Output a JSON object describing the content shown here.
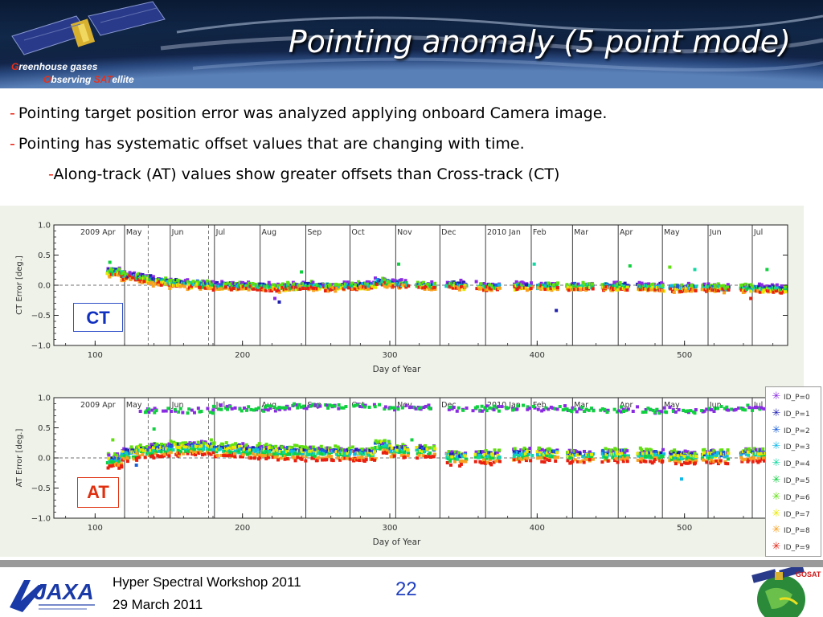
{
  "header": {
    "title": "Pointing anomaly (5 point mode)",
    "logo_line1_initial": "G",
    "logo_line1_rest": "reenhouse gases",
    "logo_line2_initial": "O",
    "logo_line2_mid": "bserving ",
    "logo_line2_sat": "SAT",
    "logo_line2_rest": "ellite"
  },
  "bullets": [
    {
      "dash": "-",
      "text": "Pointing target position error was analyzed applying onboard Camera image."
    },
    {
      "dash": "-",
      "text": "Pointing has systematic offset values that are changing with time."
    },
    {
      "dash": "-",
      "text": "Along-track (AT) values show greater offsets than Cross-track (CT)"
    }
  ],
  "labels": {
    "ct_box": "CT",
    "at_box": "AT"
  },
  "footer": {
    "workshop": "Hyper Spectral Workshop 2011",
    "date": "29 March 2011",
    "page_number": "22",
    "gosat_badge": "GOSAT"
  },
  "colors": {
    "series": [
      "#8a2be2",
      "#2020b0",
      "#1a60d8",
      "#10b8e8",
      "#10d8a0",
      "#10d040",
      "#60e010",
      "#e8e800",
      "#f8a020",
      "#e82010"
    ],
    "dash": "#e82010"
  },
  "chart_data": [
    {
      "type": "scatter",
      "xlabel": "Day of Year",
      "ylabel": "CT Error [deg.]",
      "xlim": [
        72,
        570
      ],
      "ylim": [
        -1.0,
        1.0
      ],
      "xticks": [
        100,
        200,
        300,
        400,
        500
      ],
      "yticks": [
        1.0,
        0.5,
        0.0,
        -0.5,
        -1.0
      ],
      "ytick_labels": [
        "1.0",
        "0.5",
        "0.0",
        "−0.5",
        "−1.0"
      ],
      "month_boundaries": [
        120,
        151,
        181,
        212,
        243,
        273,
        304,
        334,
        365,
        396,
        424,
        455,
        485,
        516,
        546
      ],
      "month_labels": [
        {
          "x": 90,
          "label": "2009 Apr"
        },
        {
          "x": 121,
          "label": "May"
        },
        {
          "x": 152,
          "label": "Jun"
        },
        {
          "x": 182,
          "label": "Jul"
        },
        {
          "x": 213,
          "label": "Aug"
        },
        {
          "x": 244,
          "label": "Sep"
        },
        {
          "x": 274,
          "label": "Oct"
        },
        {
          "x": 305,
          "label": "Nov"
        },
        {
          "x": 335,
          "label": "Dec"
        },
        {
          "x": 366,
          "label": "2010 Jan"
        },
        {
          "x": 397,
          "label": "Feb"
        },
        {
          "x": 425,
          "label": "Mar"
        },
        {
          "x": 456,
          "label": "Apr"
        },
        {
          "x": 486,
          "label": "May"
        },
        {
          "x": 517,
          "label": "Jun"
        },
        {
          "x": 547,
          "label": "Jul"
        }
      ],
      "dashed_lines": [
        136,
        177
      ],
      "series_names": [
        "ID_P=0",
        "ID_P=1",
        "ID_P=2",
        "ID_P=3",
        "ID_P=4",
        "ID_P=5",
        "ID_P=6",
        "ID_P=7",
        "ID_P=8",
        "ID_P=9"
      ],
      "observation_days": [
        [
          108,
          118,
          0.22
        ],
        [
          118,
          128,
          0.15
        ],
        [
          128,
          138,
          0.12
        ],
        [
          138,
          148,
          0.07
        ],
        [
          148,
          160,
          0.04
        ],
        [
          160,
          172,
          0.02
        ],
        [
          172,
          182,
          0.0
        ],
        [
          182,
          200,
          -0.01
        ],
        [
          200,
          215,
          -0.02
        ],
        [
          215,
          230,
          -0.03
        ],
        [
          230,
          240,
          -0.02
        ],
        [
          240,
          255,
          -0.01
        ],
        [
          255,
          268,
          -0.02
        ],
        [
          268,
          280,
          -0.01
        ],
        [
          280,
          290,
          0.0
        ],
        [
          290,
          298,
          0.05
        ],
        [
          298,
          305,
          0.03
        ],
        [
          305,
          312,
          0.02
        ],
        [
          318,
          330,
          0.0
        ],
        [
          338,
          352,
          0.0
        ],
        [
          358,
          374,
          -0.02
        ],
        [
          384,
          396,
          -0.01
        ],
        [
          400,
          414,
          -0.01
        ],
        [
          420,
          438,
          -0.02
        ],
        [
          444,
          462,
          -0.02
        ],
        [
          468,
          486,
          -0.03
        ],
        [
          490,
          508,
          -0.04
        ],
        [
          512,
          530,
          -0.04
        ],
        [
          538,
          554,
          -0.05
        ],
        [
          556,
          568,
          -0.06
        ]
      ],
      "series_offsets": [
        0.04,
        0.02,
        0.01,
        -0.01,
        0.0,
        -0.02,
        0.03,
        -0.03,
        -0.05,
        -0.04
      ],
      "scatter_spread": 0.05,
      "outliers": [
        {
          "x": 306,
          "y": 0.35,
          "series": 5
        },
        {
          "x": 398,
          "y": 0.35,
          "series": 4
        },
        {
          "x": 463,
          "y": 0.32,
          "series": 5
        },
        {
          "x": 490,
          "y": 0.3,
          "series": 6
        },
        {
          "x": 507,
          "y": 0.26,
          "series": 4
        },
        {
          "x": 556,
          "y": 0.26,
          "series": 5
        },
        {
          "x": 413,
          "y": -0.42,
          "series": 1
        },
        {
          "x": 545,
          "y": -0.22,
          "series": 9
        },
        {
          "x": 225,
          "y": -0.28,
          "series": 1
        },
        {
          "x": 222,
          "y": -0.22,
          "series": 0
        },
        {
          "x": 110,
          "y": 0.38,
          "series": 5
        },
        {
          "x": 240,
          "y": 0.22,
          "series": 5
        }
      ]
    },
    {
      "type": "scatter",
      "xlabel": "Day of Year",
      "ylabel": "AT Error [deg.]",
      "xlim": [
        72,
        570
      ],
      "ylim": [
        -1.0,
        1.0
      ],
      "xticks": [
        100,
        200,
        300,
        400,
        500
      ],
      "yticks": [
        1.0,
        0.5,
        0.0,
        -0.5,
        -1.0
      ],
      "ytick_labels": [
        "1.0",
        "0.5",
        "0.0",
        "−0.5",
        "−1.0"
      ],
      "month_boundaries": [
        120,
        151,
        181,
        212,
        243,
        273,
        304,
        334,
        365,
        396,
        424,
        455,
        485,
        516,
        546
      ],
      "month_labels": [
        {
          "x": 90,
          "label": "2009 Apr"
        },
        {
          "x": 121,
          "label": "May"
        },
        {
          "x": 152,
          "label": "Jun"
        },
        {
          "x": 182,
          "label": "Jul"
        },
        {
          "x": 213,
          "label": "Aug"
        },
        {
          "x": 244,
          "label": "Sep"
        },
        {
          "x": 274,
          "label": "Oct"
        },
        {
          "x": 305,
          "label": "Nov"
        },
        {
          "x": 335,
          "label": "Dec"
        },
        {
          "x": 366,
          "label": "2010 Jan"
        },
        {
          "x": 397,
          "label": "Feb"
        },
        {
          "x": 425,
          "label": "Mar"
        },
        {
          "x": 456,
          "label": "Apr"
        },
        {
          "x": 486,
          "label": "May"
        },
        {
          "x": 517,
          "label": "Jun"
        },
        {
          "x": 547,
          "label": "Jul"
        }
      ],
      "dashed_lines": [
        136,
        177
      ],
      "series_names": [
        "ID_P=0",
        "ID_P=1",
        "ID_P=2",
        "ID_P=3",
        "ID_P=4",
        "ID_P=5",
        "ID_P=6",
        "ID_P=7",
        "ID_P=8",
        "ID_P=9"
      ],
      "observation_days": [
        [
          108,
          118,
          -0.05
        ],
        [
          118,
          128,
          0.05
        ],
        [
          128,
          138,
          0.1
        ],
        [
          138,
          150,
          0.12
        ],
        [
          150,
          165,
          0.15
        ],
        [
          165,
          180,
          0.16
        ],
        [
          180,
          200,
          0.12
        ],
        [
          200,
          220,
          0.1
        ],
        [
          220,
          240,
          0.08
        ],
        [
          240,
          260,
          0.07
        ],
        [
          260,
          280,
          0.06
        ],
        [
          280,
          290,
          0.05
        ],
        [
          290,
          300,
          0.18
        ],
        [
          300,
          312,
          0.1
        ],
        [
          318,
          330,
          0.1
        ],
        [
          338,
          352,
          0.0
        ],
        [
          358,
          374,
          0.02
        ],
        [
          384,
          396,
          0.04
        ],
        [
          400,
          414,
          0.05
        ],
        [
          420,
          438,
          0.02
        ],
        [
          444,
          462,
          0.04
        ],
        [
          468,
          486,
          0.03
        ],
        [
          490,
          508,
          0.0
        ],
        [
          512,
          530,
          0.02
        ],
        [
          538,
          554,
          0.04
        ],
        [
          556,
          568,
          0.05
        ]
      ],
      "series_offsets": [
        0.08,
        0.06,
        0.05,
        0.02,
        0.0,
        -0.02,
        0.1,
        0.04,
        -0.06,
        -0.09
      ],
      "scatter_spread": 0.05,
      "high_cluster": {
        "series": [
          0,
          5
        ],
        "segments": [
          [
            130,
            180,
            0.78
          ],
          [
            180,
            230,
            0.82
          ],
          [
            230,
            300,
            0.86
          ],
          [
            300,
            330,
            0.84
          ],
          [
            340,
            420,
            0.82
          ],
          [
            420,
            470,
            0.8
          ],
          [
            470,
            520,
            0.78
          ],
          [
            520,
            568,
            0.82
          ]
        ]
      },
      "outliers": [
        {
          "x": 498,
          "y": -0.35,
          "series": 3
        },
        {
          "x": 128,
          "y": -0.12,
          "series": 2
        },
        {
          "x": 118,
          "y": -0.15,
          "series": 9
        },
        {
          "x": 140,
          "y": 0.48,
          "series": 5
        },
        {
          "x": 112,
          "y": 0.3,
          "series": 6
        },
        {
          "x": 315,
          "y": 0.3,
          "series": 5
        }
      ]
    }
  ]
}
